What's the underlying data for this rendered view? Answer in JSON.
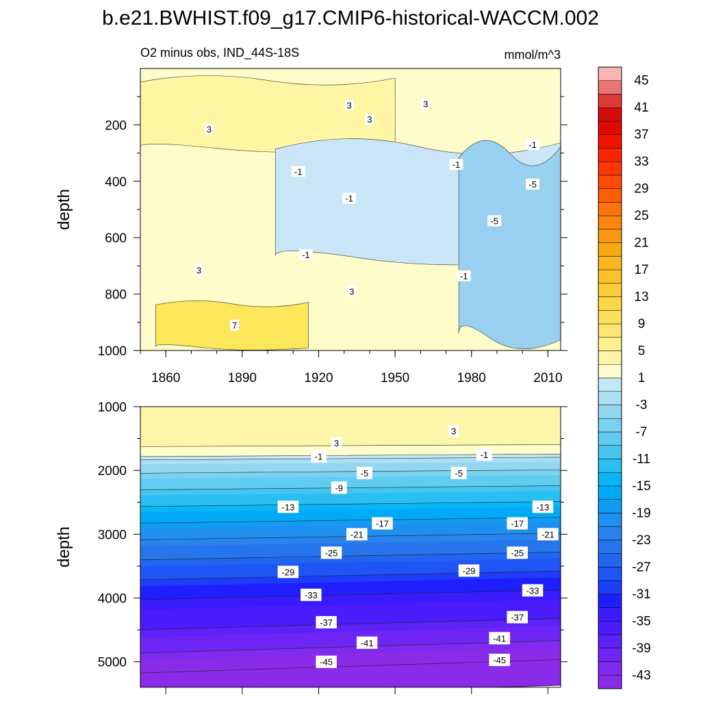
{
  "figure": {
    "title": "b.e21.BWHIST.f09_g17.CMIP6-historical-WACCM.002",
    "left_subtitle": "O2 minus obs, IND_44S-18S",
    "right_subtitle": "mmol/m^3"
  },
  "chart_data": [
    {
      "type": "heatmap",
      "panel": "upper",
      "xlabel": "",
      "ylabel": "depth",
      "x_ticks": [
        "1860",
        "1890",
        "1920",
        "1950",
        "1980",
        "2010"
      ],
      "x_tick_values": [
        1860,
        1890,
        1920,
        1950,
        1980,
        2010
      ],
      "y_ticks": [
        "200",
        "400",
        "600",
        "800",
        "1000"
      ],
      "y_tick_values": [
        200,
        400,
        600,
        800,
        1000
      ],
      "xlim": [
        1850,
        2015
      ],
      "ylim": [
        0,
        1000
      ],
      "y_reversed": true,
      "contour_labels": [
        {
          "text": "3",
          "x": 1932,
          "y": 130
        },
        {
          "text": "3",
          "x": 1962,
          "y": 125
        },
        {
          "text": "3",
          "x": 1940,
          "y": 180
        },
        {
          "text": "3",
          "x": 1877,
          "y": 215
        },
        {
          "text": "-1",
          "x": 2004,
          "y": 270
        },
        {
          "text": "-1",
          "x": 1974,
          "y": 340
        },
        {
          "text": "-1",
          "x": 1912,
          "y": 365
        },
        {
          "text": "-5",
          "x": 2004,
          "y": 410
        },
        {
          "text": "-1",
          "x": 1932,
          "y": 460
        },
        {
          "text": "-5",
          "x": 1989,
          "y": 540
        },
        {
          "text": "-1",
          "x": 1915,
          "y": 660
        },
        {
          "text": "3",
          "x": 1873,
          "y": 715
        },
        {
          "text": "-1",
          "x": 1977,
          "y": 735
        },
        {
          "text": "3",
          "x": 1933,
          "y": 790
        },
        {
          "text": "7",
          "x": 1887,
          "y": 910
        }
      ],
      "features": [
        {
          "label": "7",
          "x0": 1856,
          "x1": 1916,
          "d0": 820,
          "d1": 1000,
          "fill": "#fce65a"
        },
        {
          "label": "3",
          "x0": 1850,
          "x1": 1950,
          "d0": 20,
          "d1": 300,
          "fill": "#fef6a2"
        },
        {
          "label": "-1",
          "x0": 1903,
          "x1": 2015,
          "d0": 240,
          "d1": 700,
          "fill": "#c8e6f5"
        },
        {
          "label": "-5",
          "x0": 1975,
          "x1": 2015,
          "d0": 240,
          "d1": 1000,
          "fill": "#99d0ef"
        }
      ]
    },
    {
      "type": "heatmap",
      "panel": "lower",
      "xlabel": "",
      "ylabel": "depth",
      "y_ticks": [
        "1000",
        "2000",
        "3000",
        "4000",
        "5000"
      ],
      "y_tick_values": [
        1000,
        2000,
        3000,
        4000,
        5000
      ],
      "xlim": [
        1850,
        2015
      ],
      "ylim": [
        1000,
        5400
      ],
      "y_reversed": true,
      "profile": [
        {
          "d": 1000,
          "v": 5
        },
        {
          "d": 1600,
          "v": 3
        },
        {
          "d": 1750,
          "v": 1
        },
        {
          "d": 1800,
          "v": -1
        },
        {
          "d": 2000,
          "v": -5
        },
        {
          "d": 2250,
          "v": -9
        },
        {
          "d": 2500,
          "v": -13
        },
        {
          "d": 2750,
          "v": -17
        },
        {
          "d": 3000,
          "v": -21
        },
        {
          "d": 3300,
          "v": -25
        },
        {
          "d": 3600,
          "v": -29
        },
        {
          "d": 3900,
          "v": -33
        },
        {
          "d": 4350,
          "v": -37
        },
        {
          "d": 4700,
          "v": -41
        },
        {
          "d": 5000,
          "v": -45
        },
        {
          "d": 5400,
          "v": -47
        }
      ],
      "contour_labels": [
        {
          "text": "3",
          "x": 1973,
          "y": 1380
        },
        {
          "text": "3",
          "x": 1927,
          "y": 1570
        },
        {
          "text": "-1",
          "x": 1920,
          "y": 1780
        },
        {
          "text": "-1",
          "x": 1985,
          "y": 1750
        },
        {
          "text": "-5",
          "x": 1938,
          "y": 2040
        },
        {
          "text": "-5",
          "x": 1975,
          "y": 2040
        },
        {
          "text": "-9",
          "x": 1928,
          "y": 2270
        },
        {
          "text": "-13",
          "x": 1908,
          "y": 2570
        },
        {
          "text": "-13",
          "x": 2008,
          "y": 2570
        },
        {
          "text": "-17",
          "x": 1945,
          "y": 2830
        },
        {
          "text": "-17",
          "x": 1998,
          "y": 2830
        },
        {
          "text": "-21",
          "x": 1935,
          "y": 3000
        },
        {
          "text": "-21",
          "x": 2010,
          "y": 3000
        },
        {
          "text": "-25",
          "x": 1925,
          "y": 3290
        },
        {
          "text": "-25",
          "x": 1998,
          "y": 3290
        },
        {
          "text": "-29",
          "x": 1908,
          "y": 3590
        },
        {
          "text": "-29",
          "x": 1979,
          "y": 3570
        },
        {
          "text": "-33",
          "x": 1917,
          "y": 3950
        },
        {
          "text": "-33",
          "x": 2004,
          "y": 3880
        },
        {
          "text": "-37",
          "x": 1923,
          "y": 4380
        },
        {
          "text": "-37",
          "x": 1998,
          "y": 4300
        },
        {
          "text": "-41",
          "x": 1939,
          "y": 4700
        },
        {
          "text": "-41",
          "x": 1991,
          "y": 4630
        },
        {
          "text": "-45",
          "x": 1923,
          "y": 5000
        },
        {
          "text": "-45",
          "x": 1991,
          "y": 4970
        }
      ]
    }
  ],
  "colorbar": {
    "levels": [
      -45,
      -43,
      -41,
      -39,
      -37,
      -35,
      -33,
      -31,
      -29,
      -27,
      -25,
      -23,
      -21,
      -19,
      -17,
      -15,
      -13,
      -11,
      -9,
      -7,
      -5,
      -3,
      -1,
      1,
      3,
      5,
      7,
      9,
      11,
      13,
      15,
      17,
      19,
      21,
      23,
      25,
      27,
      29,
      31,
      33,
      35,
      37,
      39,
      41,
      43,
      45
    ],
    "labels": [
      "45",
      "41",
      "37",
      "33",
      "29",
      "25",
      "21",
      "17",
      "13",
      "9",
      "5",
      "1",
      "-3",
      "-7",
      "-11",
      "-15",
      "-19",
      "-23",
      "-27",
      "-31",
      "-35",
      "-39",
      "-43"
    ],
    "colors": [
      "#8a2be8",
      "#7e2af0",
      "#6f26f5",
      "#5c22f8",
      "#4a1cfb",
      "#3a1bfd",
      "#1f1ffe",
      "#1e3cfb",
      "#1f55f4",
      "#2166ef",
      "#2675ec",
      "#2a83ec",
      "#1f8ff0",
      "#119cf5",
      "#00aaf8",
      "#08b6f6",
      "#2abff2",
      "#45c5f0",
      "#60ccf0",
      "#7ad2f0",
      "#93d8f0",
      "#acdff1",
      "#c3e8f5",
      "#fffdcc",
      "#fdf5a8",
      "#fdee8e",
      "#fde772",
      "#fde05a",
      "#fdd748",
      "#fccd3a",
      "#fbc22c",
      "#fab61e",
      "#f9a815",
      "#f99810",
      "#fa860c",
      "#fb730a",
      "#fc5e08",
      "#fd4a06",
      "#fd3704",
      "#fb2502",
      "#f01400",
      "#e00800",
      "#d40c0c",
      "#dc3a3a",
      "#e97474",
      "#f9b5b5"
    ]
  }
}
